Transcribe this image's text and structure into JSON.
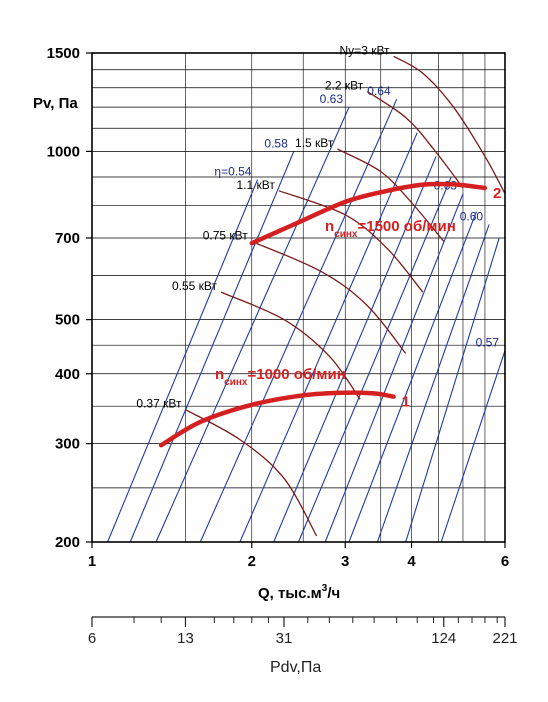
{
  "chart_data": {
    "type": "line",
    "xlabel": "Q, тыс.м³/ч",
    "xlabel_parts": {
      "main": "Q, тыс.м",
      "sup": "3",
      "tail": "/ч"
    },
    "ylabel": "Pv, Па",
    "x_scale": "log",
    "y_scale": "log",
    "xlim": [
      1,
      6
    ],
    "ylim": [
      200,
      1500
    ],
    "x_ticks": [
      1,
      2,
      3,
      4,
      6
    ],
    "y_ticks": [
      200,
      300,
      400,
      500,
      700,
      1000,
      1500
    ],
    "grid": true,
    "series": [
      {
        "name": "1",
        "label_prefix": "n",
        "label_sub": "синх",
        "label_text": "=1000 об/мин",
        "points": [
          [
            1.35,
            298
          ],
          [
            1.6,
            328
          ],
          [
            2.0,
            352
          ],
          [
            2.5,
            366
          ],
          [
            3.0,
            370
          ],
          [
            3.4,
            369
          ],
          [
            3.7,
            364
          ]
        ]
      },
      {
        "name": "2",
        "label_prefix": "n",
        "label_sub": "синх",
        "label_text": "=1500 об/мин",
        "points": [
          [
            2.0,
            685
          ],
          [
            2.4,
            740
          ],
          [
            3.0,
            812
          ],
          [
            3.6,
            850
          ],
          [
            4.2,
            872
          ],
          [
            4.8,
            873
          ],
          [
            5.5,
            860
          ]
        ]
      }
    ],
    "power_lines": [
      {
        "label": "Ny=3 кВт",
        "points": [
          [
            3.7,
            1480
          ],
          [
            4.2,
            1380
          ],
          [
            4.8,
            1200
          ],
          [
            5.5,
            980
          ],
          [
            6.0,
            840
          ]
        ]
      },
      {
        "label": "2.2 кВт",
        "points": [
          [
            3.3,
            1280
          ],
          [
            3.9,
            1150
          ],
          [
            4.4,
            1010
          ],
          [
            5.0,
            860
          ]
        ]
      },
      {
        "label": "1.5 кВт",
        "points": [
          [
            2.9,
            1010
          ],
          [
            3.5,
            920
          ],
          [
            4.0,
            810
          ],
          [
            4.6,
            690
          ]
        ]
      },
      {
        "label": "1.1 кВт",
        "points": [
          [
            2.25,
            850
          ],
          [
            3.0,
            770
          ],
          [
            3.6,
            670
          ],
          [
            4.2,
            560
          ]
        ]
      },
      {
        "label": "0.75 кВт",
        "points": [
          [
            2.0,
            690
          ],
          [
            2.7,
            610
          ],
          [
            3.3,
            530
          ],
          [
            3.9,
            435
          ]
        ]
      },
      {
        "label": "0.55 кВт",
        "points": [
          [
            1.75,
            560
          ],
          [
            2.3,
            500
          ],
          [
            2.8,
            430
          ],
          [
            3.2,
            360
          ]
        ]
      },
      {
        "label": "0.37 кВт",
        "points": [
          [
            1.5,
            345
          ],
          [
            1.9,
            305
          ],
          [
            2.3,
            260
          ],
          [
            2.65,
            205
          ]
        ]
      }
    ],
    "efficiency_lines": [
      {
        "label": "η=0.54",
        "points": [
          [
            1.07,
            200
          ],
          [
            2.05,
            890
          ]
        ]
      },
      {
        "label": "0.58",
        "points": [
          [
            1.18,
            200
          ],
          [
            2.4,
            1000
          ]
        ]
      },
      {
        "label": "0.63",
        "points": [
          [
            1.32,
            200
          ],
          [
            3.05,
            1200
          ]
        ]
      },
      {
        "label": "0.64",
        "points": [
          [
            1.6,
            200
          ],
          [
            3.75,
            1240
          ]
        ]
      },
      {
        "label": "",
        "points": [
          [
            1.9,
            200
          ],
          [
            4.1,
            1080
          ]
        ]
      },
      {
        "label": "",
        "points": [
          [
            2.2,
            200
          ],
          [
            4.45,
            980
          ]
        ]
      },
      {
        "label": "",
        "points": [
          [
            2.45,
            200
          ],
          [
            4.75,
            900
          ]
        ]
      },
      {
        "label": "0.63",
        "points": [
          [
            2.75,
            200
          ],
          [
            5.0,
            840
          ]
        ]
      },
      {
        "label": "",
        "points": [
          [
            3.05,
            200
          ],
          [
            5.3,
            780
          ]
        ]
      },
      {
        "label": "0.60",
        "points": [
          [
            3.45,
            200
          ],
          [
            5.6,
            740
          ]
        ]
      },
      {
        "label": "",
        "points": [
          [
            3.9,
            200
          ],
          [
            5.85,
            700
          ]
        ]
      },
      {
        "label": "0.57",
        "points": [
          [
            4.55,
            200
          ],
          [
            6.0,
            440
          ]
        ]
      }
    ],
    "pdv_axis": {
      "label": "Pdv,Па",
      "ticks": [
        {
          "label": "6",
          "q": 1.0
        },
        {
          "label": "13",
          "q": 1.5
        },
        {
          "label": "31",
          "q": 2.3
        },
        {
          "label": "124",
          "q": 4.6
        },
        {
          "label": "221",
          "q": 6.0
        }
      ],
      "minor_q": [
        1.2,
        1.35,
        1.7,
        1.85,
        2.0,
        2.15,
        2.55,
        2.8,
        3.1,
        3.4,
        3.75,
        4.1,
        4.4,
        4.9,
        5.2,
        5.5,
        5.8
      ]
    }
  }
}
